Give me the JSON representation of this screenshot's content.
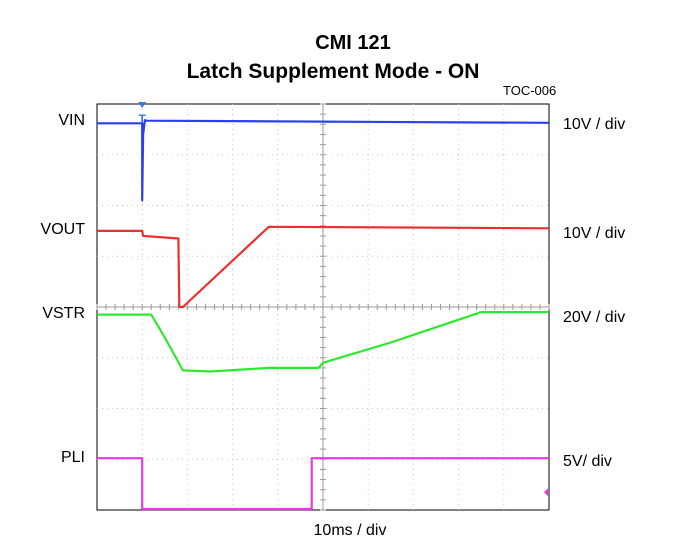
{
  "header": {
    "title_line1": "CMI  121",
    "title_line2": "Latch Supplement Mode - ON",
    "figure_code": "TOC-006"
  },
  "trigger_marker": "T",
  "chart_data": {
    "type": "line",
    "title": "CMI 121 Latch Supplement Mode - ON",
    "x_units": "div",
    "xlabel": "10ms / div",
    "xlim": [
      0,
      10
    ],
    "ylim_div": [
      0,
      8
    ],
    "grid": true,
    "trigger_x": 1.0,
    "series": [
      {
        "name": "VIN",
        "scale": "10V / div",
        "color": "#2b3ff0",
        "level": 7.65,
        "x": [
          0,
          1.0,
          1.0,
          1.02,
          1.06,
          1.1,
          10
        ],
        "y": [
          7.62,
          7.62,
          6.1,
          7.4,
          7.68,
          7.67,
          7.63
        ]
      },
      {
        "name": "VOUT",
        "scale": "10V / div",
        "color": "#ea3030",
        "level": 5.5,
        "x": [
          0,
          1.0,
          1.02,
          1.8,
          1.82,
          1.9,
          3.8,
          10
        ],
        "y": [
          5.5,
          5.5,
          5.4,
          5.35,
          4.0,
          4.0,
          5.58,
          5.55
        ]
      },
      {
        "name": "VSTR",
        "scale": "20V / div",
        "color": "#2ee82e",
        "level": 3.85,
        "x": [
          0,
          1.2,
          1.5,
          1.9,
          2.5,
          3.8,
          4.9,
          5.0,
          6.5,
          7.5,
          8.5,
          10
        ],
        "y": [
          3.85,
          3.85,
          3.4,
          2.75,
          2.73,
          2.8,
          2.8,
          2.9,
          3.3,
          3.6,
          3.9,
          3.9
        ]
      },
      {
        "name": "PLI",
        "scale": "5V/ div",
        "color": "#e43ae4",
        "level": 1.0,
        "x": [
          0,
          1.0,
          1.0,
          4.75,
          4.75,
          10
        ],
        "y": [
          1.02,
          1.02,
          0.02,
          0.02,
          1.02,
          1.02
        ]
      }
    ]
  }
}
